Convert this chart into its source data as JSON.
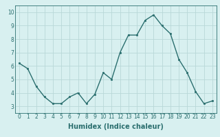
{
  "x": [
    0,
    1,
    2,
    3,
    4,
    5,
    6,
    7,
    8,
    9,
    10,
    11,
    12,
    13,
    14,
    15,
    16,
    17,
    18,
    19,
    20,
    21,
    22,
    23
  ],
  "y": [
    6.2,
    5.8,
    4.5,
    3.7,
    3.2,
    3.2,
    3.7,
    4.0,
    3.2,
    3.9,
    5.5,
    5.0,
    7.0,
    8.3,
    8.3,
    9.4,
    9.8,
    9.0,
    8.4,
    6.5,
    5.5,
    4.1,
    3.2,
    3.4
  ],
  "line_color": "#2a6e6e",
  "marker": "s",
  "marker_size": 2.0,
  "bg_color": "#d8f0f0",
  "grid_color": "#b8d8d8",
  "xlabel": "Humidex (Indice chaleur)",
  "xlabel_fontsize": 7,
  "xlim": [
    -0.5,
    23.5
  ],
  "ylim": [
    2.5,
    10.5
  ],
  "yticks": [
    3,
    4,
    5,
    6,
    7,
    8,
    9,
    10
  ],
  "xticks": [
    0,
    1,
    2,
    3,
    4,
    5,
    6,
    7,
    8,
    9,
    10,
    11,
    12,
    13,
    14,
    15,
    16,
    17,
    18,
    19,
    20,
    21,
    22,
    23
  ],
  "tick_fontsize": 5.5,
  "bottom_bar_color": "#2a6e6e",
  "line_width": 1.0
}
